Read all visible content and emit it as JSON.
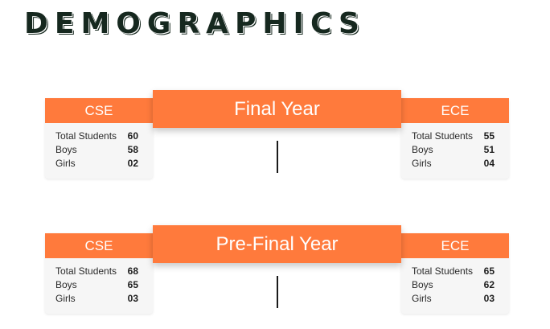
{
  "page": {
    "title": "DEMOGRAPHICS"
  },
  "colors": {
    "accent": "#ff7a3c",
    "title": "#16281f",
    "card_bg": "#f6f6f6"
  },
  "sections": [
    {
      "title": "Final Year",
      "left": {
        "name": "CSE",
        "rows": [
          {
            "label": "Total Students",
            "value": "60"
          },
          {
            "label": "Boys",
            "value": "58"
          },
          {
            "label": "Girls",
            "value": "02"
          }
        ]
      },
      "right": {
        "name": "ECE",
        "rows": [
          {
            "label": "Total Students",
            "value": "55"
          },
          {
            "label": "Boys",
            "value": "51"
          },
          {
            "label": "Girls",
            "value": "04"
          }
        ]
      }
    },
    {
      "title": "Pre-Final Year",
      "left": {
        "name": "CSE",
        "rows": [
          {
            "label": "Total Students",
            "value": "68"
          },
          {
            "label": "Boys",
            "value": "65"
          },
          {
            "label": "Girls",
            "value": "03"
          }
        ]
      },
      "right": {
        "name": "ECE",
        "rows": [
          {
            "label": "Total Students",
            "value": "65"
          },
          {
            "label": "Boys",
            "value": "62"
          },
          {
            "label": "Girls",
            "value": "03"
          }
        ]
      }
    }
  ]
}
